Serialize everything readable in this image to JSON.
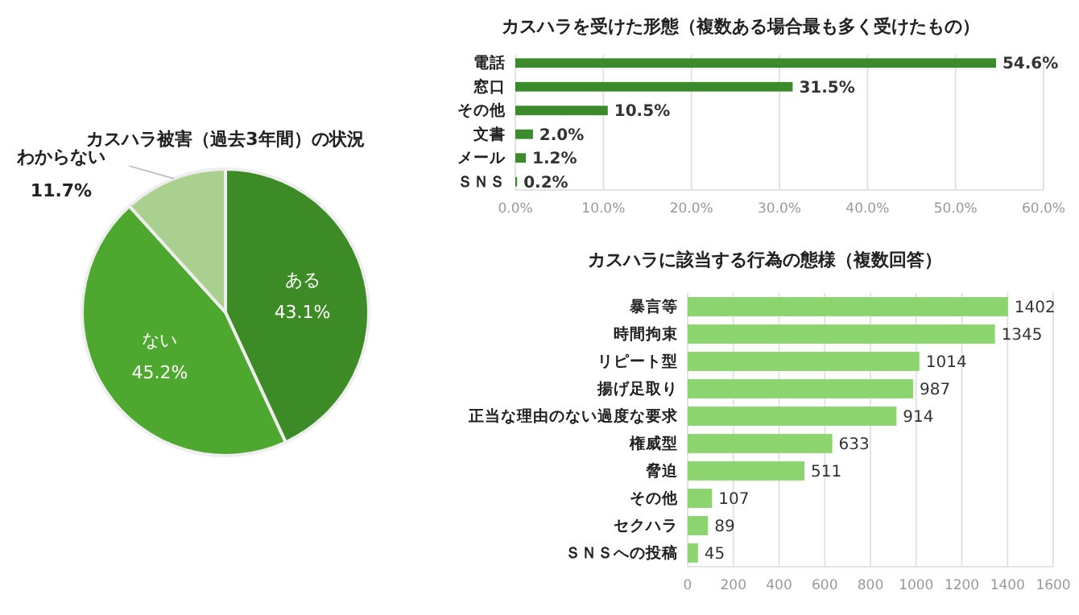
{
  "chart_data": [
    {
      "type": "pie",
      "title": "カスハラ被害（過去3年間）の状況",
      "categories": [
        "ある",
        "ない",
        "わからない"
      ],
      "values": [
        43.1,
        45.2,
        11.7
      ],
      "colors": [
        "#3d8b27",
        "#4ea72e",
        "#a9d08e"
      ],
      "value_labels": [
        "43.1%",
        "45.2%",
        "11.7%"
      ]
    },
    {
      "type": "bar",
      "orientation": "horizontal",
      "title": "カスハラを受けた形態（複数ある場合最も多く受けたもの）",
      "categories": [
        "電話",
        "窓口",
        "その他",
        "文書",
        "メール",
        "ＳＮＳ"
      ],
      "series": [
        {
          "color": "#3b8a2b",
          "values": [
            54.6,
            31.5,
            10.5,
            2.0,
            1.2,
            0.2
          ]
        }
      ],
      "value_labels": [
        "54.6%",
        "31.5%",
        "10.5%",
        "2.0%",
        "1.2%",
        "0.2%"
      ],
      "xlim": [
        0,
        60
      ],
      "xticks": [
        {
          "value": 0,
          "label": "0.0%"
        },
        {
          "value": 10,
          "label": "10.0%"
        },
        {
          "value": 20,
          "label": "20.0%"
        },
        {
          "value": 30,
          "label": "30.0%"
        },
        {
          "value": 40,
          "label": "40.0%"
        },
        {
          "value": 50,
          "label": "50.0%"
        },
        {
          "value": 60,
          "label": "60.0%"
        }
      ],
      "grid": "x"
    },
    {
      "type": "bar",
      "orientation": "horizontal",
      "title": "カスハラに該当する行為の態様（複数回答）",
      "categories": [
        "暴言等",
        "時間拘束",
        "リピート型",
        "揚げ足取り",
        "正当な理由のない過度な要求",
        "権威型",
        "脅迫",
        "その他",
        "セクハラ",
        "ＳＮＳへの投稿"
      ],
      "series": [
        {
          "color": "#8cd46e",
          "values": [
            1402,
            1345,
            1014,
            987,
            914,
            633,
            511,
            107,
            89,
            45
          ]
        }
      ],
      "data_labels": true,
      "xlim": [
        0,
        1600
      ],
      "xticks": [
        0,
        200,
        400,
        600,
        800,
        1000,
        1200,
        1400,
        1600
      ],
      "grid": "x"
    }
  ]
}
